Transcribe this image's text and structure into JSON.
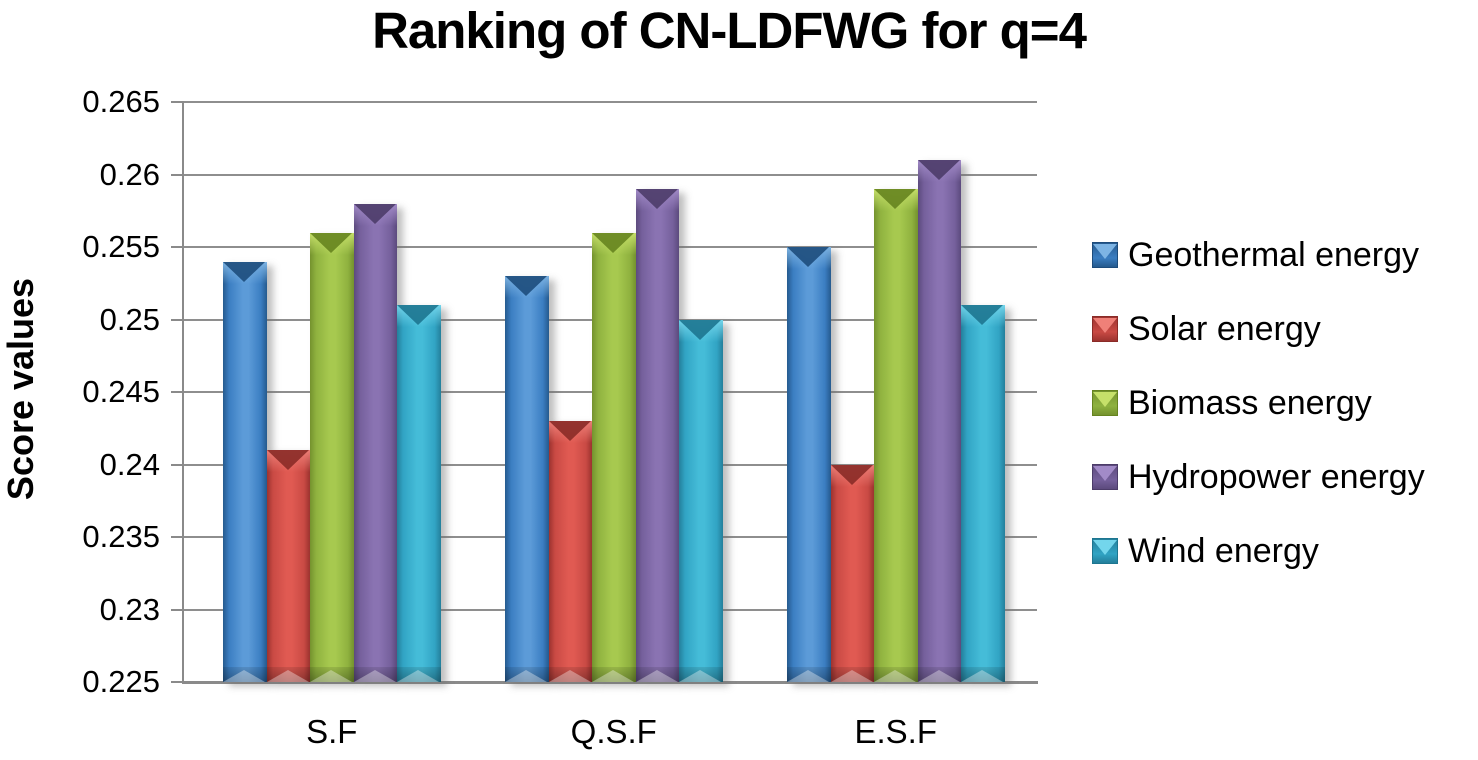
{
  "title": "Ranking of CN-LDFWG for q=4",
  "chart_data": {
    "type": "bar",
    "title": "Ranking of CN-LDFWG for q=4",
    "xlabel": "",
    "ylabel": "Score values",
    "categories": [
      "S.F",
      "Q.S.F",
      "E.S.F"
    ],
    "series": [
      {
        "name": "Geothermal energy",
        "color": "#3b7ec2",
        "values": [
          0.254,
          0.253,
          0.255
        ],
        "shades": {
          "dark": "#255a8e",
          "mid": "#3b7ec2",
          "light": "#5c9bd8",
          "capDark": "#1d4c7c",
          "capLight": "#7db4e4"
        }
      },
      {
        "name": "Solar energy",
        "color": "#c94a44",
        "values": [
          0.241,
          0.243,
          0.24
        ],
        "shades": {
          "dark": "#9c332f",
          "mid": "#c94a44",
          "light": "#e05a52",
          "capDark": "#8a2b27",
          "capLight": "#ef8078"
        }
      },
      {
        "name": "Biomass energy",
        "color": "#8fb23f",
        "values": [
          0.256,
          0.256,
          0.259
        ],
        "shades": {
          "dark": "#74922e",
          "mid": "#8fb23f",
          "light": "#a7c94f",
          "capDark": "#66841f",
          "capLight": "#c6e06a"
        }
      },
      {
        "name": "Hydropower energy",
        "color": "#75609c",
        "values": [
          0.258,
          0.259,
          0.261
        ],
        "shades": {
          "dark": "#5c4a7d",
          "mid": "#75609c",
          "light": "#8a73b2",
          "capDark": "#4c3c69",
          "capLight": "#a28bc8"
        }
      },
      {
        "name": "Wind energy",
        "color": "#31a4c4",
        "values": [
          0.251,
          0.25,
          0.251
        ],
        "shades": {
          "dark": "#247f9b",
          "mid": "#31a4c4",
          "light": "#45bcd8",
          "capDark": "#1d7690",
          "capLight": "#73d6ec"
        }
      }
    ],
    "ylim": [
      0.225,
      0.265
    ],
    "ytick_step": 0.005,
    "yticks": [
      {
        "value": 0.225,
        "label": "0.225"
      },
      {
        "value": 0.23,
        "label": "0.23"
      },
      {
        "value": 0.235,
        "label": "0.235"
      },
      {
        "value": 0.24,
        "label": "0.24"
      },
      {
        "value": 0.245,
        "label": "0.245"
      },
      {
        "value": 0.25,
        "label": "0.25"
      },
      {
        "value": 0.255,
        "label": "0.255"
      },
      {
        "value": 0.26,
        "label": "0.26"
      },
      {
        "value": 0.265,
        "label": "0.265"
      }
    ],
    "grid": true,
    "legend_position": "right",
    "gridline_color": "#8e8e8e",
    "axis_color": "#8a8a8a",
    "text_color": "#000000"
  }
}
